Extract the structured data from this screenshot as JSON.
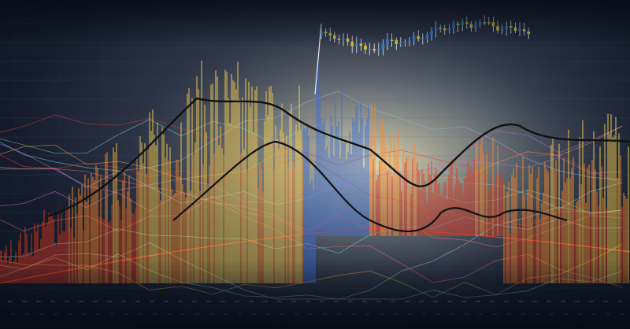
{
  "scene": {
    "palette": {
      "background_dark": "#0a101c",
      "background_mid": "#2e3648",
      "glow_center": "#e8d9a8",
      "warm_high": "#ffd24a",
      "warm_mid": "#ff8a2a",
      "warm_low": "#e0381e",
      "cool_blue": "#3b6fd6",
      "trend_line": "#111111",
      "candle_up": "#2f7fd6",
      "candle_down": "#d8c23a",
      "accent_red": "#e03a3a",
      "accent_cyan": "#6fd3e3",
      "grid": "#4a5a78"
    },
    "icons": [
      "candlestick-chart-graphic",
      "volume-spectrum-graphic",
      "trend-line-graphic"
    ]
  }
}
